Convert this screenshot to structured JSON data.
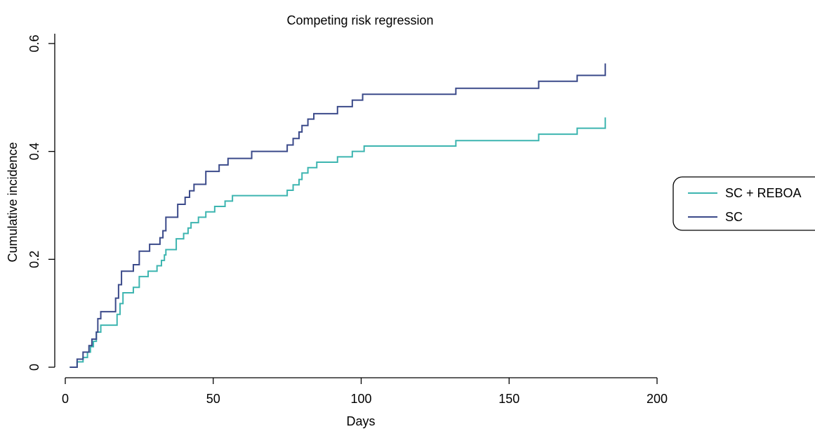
{
  "chart_data": {
    "type": "line",
    "step": true,
    "title": "Competing risk regression",
    "xlabel": "Days",
    "ylabel": "Cumulative incidence",
    "xlim": [
      0,
      200
    ],
    "ylim": [
      0,
      0.6
    ],
    "xticks": [
      0,
      50,
      100,
      150,
      200
    ],
    "xtick_labels": [
      "0",
      "50",
      "100",
      "150",
      "200"
    ],
    "yticks": [
      0,
      0.2,
      0.4,
      0.6
    ],
    "ytick_labels": [
      "0",
      "0.2",
      "0.4",
      "0.6"
    ],
    "legend_position": "right",
    "grid": false,
    "series": [
      {
        "name": "SC + REBOA",
        "color": "#3db5b0",
        "x": [
          1.5,
          4,
          6,
          7.5,
          8.5,
          9.5,
          10.5,
          12,
          17.5,
          18.5,
          19.5,
          23,
          25,
          28,
          31,
          32.5,
          33.5,
          34,
          37.5,
          40,
          41.5,
          42.5,
          45,
          47.5,
          50.5,
          54,
          56.5,
          59,
          63.5,
          75,
          77,
          79,
          80,
          82,
          85,
          92,
          97,
          101,
          132,
          160,
          173,
          182.5
        ],
        "y": [
          0,
          0.01,
          0.018,
          0.028,
          0.038,
          0.048,
          0.065,
          0.078,
          0.098,
          0.118,
          0.138,
          0.148,
          0.168,
          0.178,
          0.188,
          0.198,
          0.208,
          0.218,
          0.238,
          0.248,
          0.258,
          0.268,
          0.278,
          0.288,
          0.298,
          0.308,
          0.318,
          0.318,
          0.318,
          0.328,
          0.338,
          0.348,
          0.36,
          0.37,
          0.38,
          0.39,
          0.4,
          0.41,
          0.42,
          0.432,
          0.443,
          0.443
        ],
        "end_mark": 0.463
      },
      {
        "name": "SC",
        "color": "#3b4a8a",
        "x": [
          1.5,
          4,
          6,
          8,
          9,
          10.5,
          11,
          12,
          17,
          18,
          19,
          23,
          25,
          28.5,
          32,
          33,
          34,
          38,
          40.5,
          42,
          43.5,
          47.5,
          52,
          55,
          58,
          63,
          75,
          77,
          79,
          80,
          82,
          84,
          92,
          97,
          100.5,
          132,
          160,
          173,
          182.5
        ],
        "y": [
          0,
          0.015,
          0.028,
          0.04,
          0.052,
          0.065,
          0.09,
          0.103,
          0.128,
          0.153,
          0.178,
          0.19,
          0.215,
          0.228,
          0.24,
          0.253,
          0.278,
          0.302,
          0.315,
          0.327,
          0.339,
          0.363,
          0.375,
          0.387,
          0.387,
          0.4,
          0.412,
          0.424,
          0.436,
          0.448,
          0.46,
          0.47,
          0.483,
          0.495,
          0.506,
          0.517,
          0.53,
          0.541,
          0.541
        ],
        "end_mark": 0.563
      }
    ]
  }
}
